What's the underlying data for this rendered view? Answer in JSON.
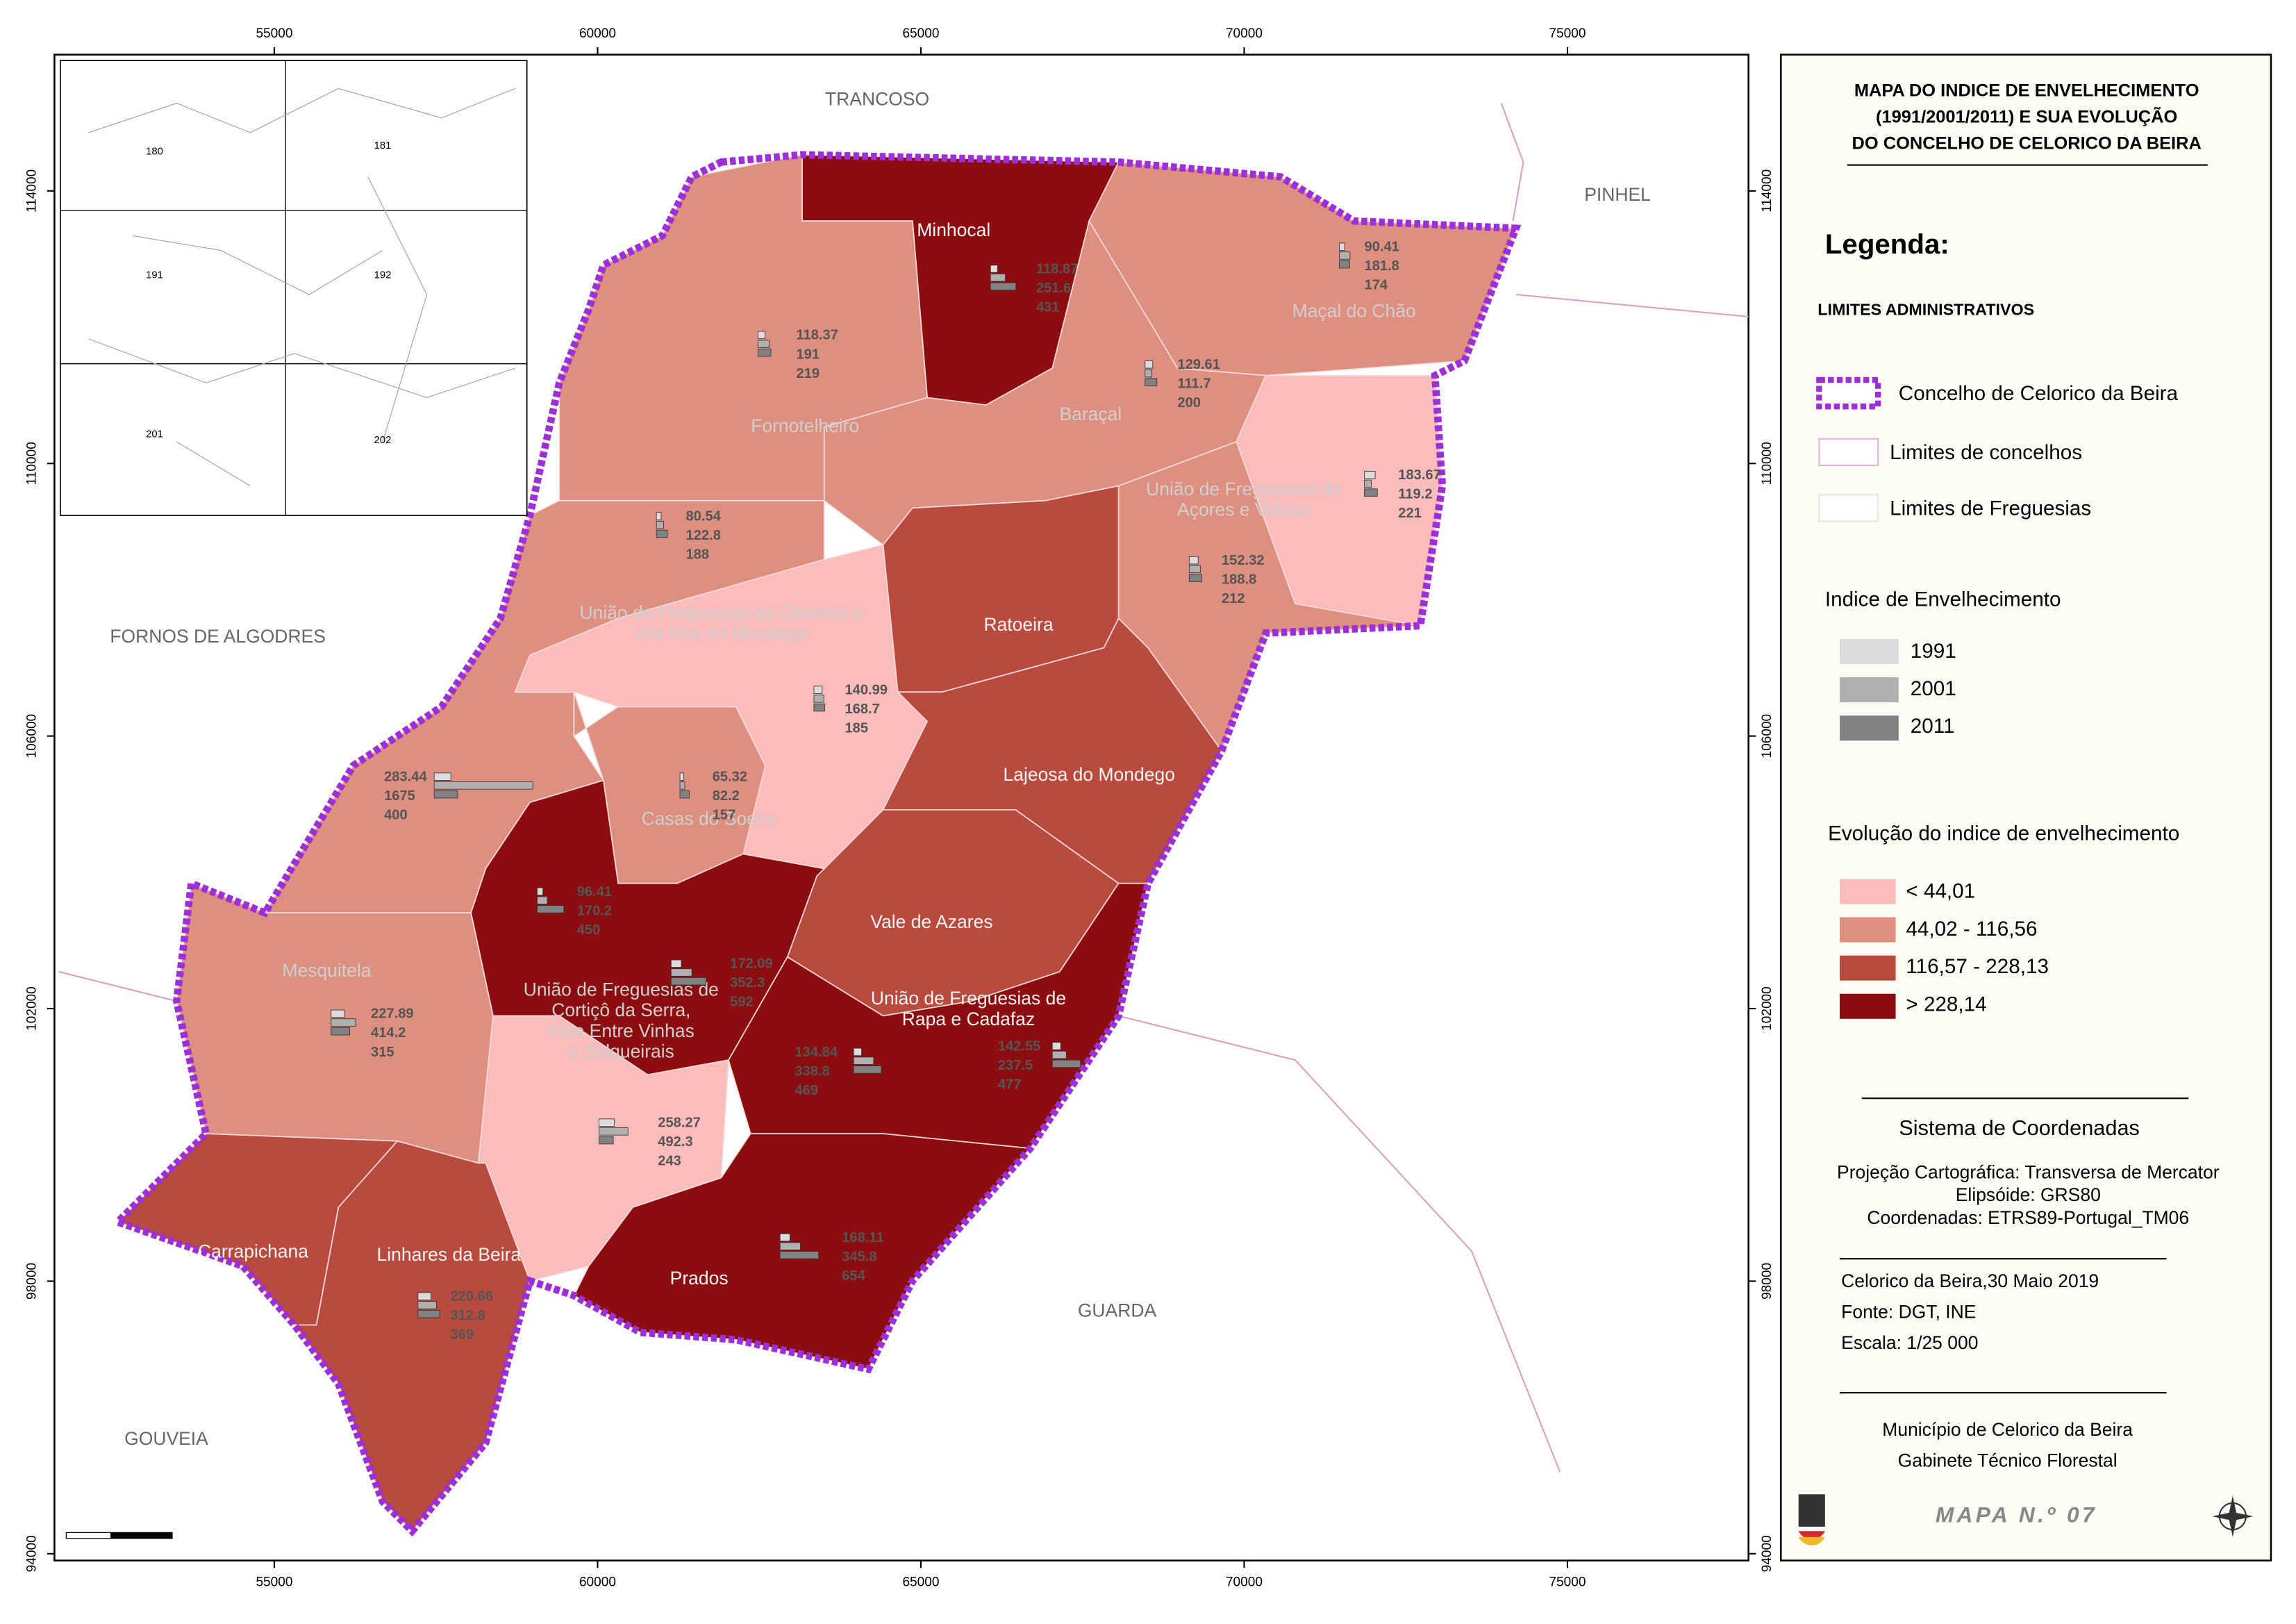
{
  "header": {
    "title": [
      "MAPA DO INDICE DE ENVELHECIMENTO",
      "(1991/2001/2011) E SUA EVOLUÇÃO",
      "DO CONCELHO DE CELORICO DA BEIRA"
    ]
  },
  "axes": {
    "xticks": [
      55000,
      60000,
      65000,
      70000,
      75000
    ],
    "xlim": [
      51600,
      77800
    ],
    "yticks": [
      94000,
      98000,
      102000,
      106000,
      110000,
      114000
    ],
    "ylim": [
      93900,
      116000
    ]
  },
  "neighbors": [
    "TRANCOSO",
    "PINHEL",
    "FORNOS DE ALGODRES",
    "GOUVEIA",
    "GUARDA"
  ],
  "inset": {
    "sheets": [
      "180",
      "181",
      "191",
      "192",
      "201",
      "202"
    ]
  },
  "regions": [
    {
      "name": [
        "Minhocal"
      ],
      "class": 3
    },
    {
      "name": [
        "Fornotelheiro"
      ],
      "class": 1
    },
    {
      "name": [
        "Maçal do Chão"
      ],
      "class": 1
    },
    {
      "name": [
        "Baraçal"
      ],
      "class": 1
    },
    {
      "class": 0
    },
    {
      "name": [
        "União de Freguesias de",
        "Açores e Velosa"
      ],
      "class": 1
    },
    {
      "name": [
        "Ratoeira"
      ],
      "class": 2
    },
    {
      "name": [
        "União de Freguesias do Celorico e",
        "Vila Boa do Mondego"
      ],
      "class": 1
    },
    {
      "class": 0
    },
    {
      "name": [
        "Casas do Soeiro"
      ],
      "class": 1
    },
    {
      "name": [
        "Lajeosa do Mondego"
      ],
      "class": 2
    },
    {
      "name": [
        "Vale de Azares"
      ],
      "class": 2
    },
    {
      "class": 3
    },
    {
      "name": [
        "União de Freguesias de",
        "Cortiçô da Serra,",
        "Vide Entre Vinhas",
        "e Salgueirais"
      ],
      "class": 0
    },
    {
      "name": [
        "União de Freguesias de",
        "Rapa e Cadafaz"
      ],
      "class": 3
    },
    {
      "name": [
        "Prados"
      ],
      "class": 3
    },
    {
      "name": [
        "Carrapichana"
      ],
      "class": 2
    },
    {
      "name": [
        "Linhares da Beira"
      ],
      "class": 2
    },
    {
      "name": [
        "Mesquitela"
      ],
      "class": 1
    }
  ],
  "bar_groups": [
    [
      118.87,
      251.6,
      431
    ],
    [
      118.37,
      191,
      219
    ],
    [
      90.41,
      181.8,
      174
    ],
    [
      129.61,
      111.7,
      200
    ],
    [
      183.67,
      119.2,
      221
    ],
    [
      152.32,
      188.8,
      212
    ],
    [
      80.54,
      122.8,
      188
    ],
    [
      140.99,
      168.7,
      185
    ],
    [
      283.44,
      1675,
      400
    ],
    [
      65.32,
      82.2,
      157
    ],
    [
      96.41,
      170.2,
      450
    ],
    [
      172.09,
      352.3,
      592
    ],
    [
      227.89,
      414.2,
      315
    ],
    [
      258.27,
      492.3,
      243
    ],
    [
      134.84,
      338.8,
      469
    ],
    [
      142.55,
      237.5,
      477
    ],
    [
      168.11,
      345.8,
      654
    ],
    [
      220.66,
      312.8,
      369
    ]
  ],
  "legend": {
    "heading": "Legenda:",
    "limits_title": "LIMITES ADMINISTRATIVOS",
    "limits": [
      "Concelho de Celorico da Beira",
      "Limites de concelhos",
      "Limites de Freguesias"
    ],
    "index_title": "Indice de Envelhecimento",
    "years": [
      {
        "label": "1991",
        "color": "#dcdcdc"
      },
      {
        "label": "2001",
        "color": "#b0b0b0"
      },
      {
        "label": "2011",
        "color": "#828282"
      }
    ],
    "evolution_title": "Evolução do indice de envelhecimento",
    "classes": [
      {
        "label": "< 44,01",
        "color": "#fbbcbb"
      },
      {
        "label": "44,02 - 116,56",
        "color": "#df8f7f"
      },
      {
        "label": "116,57 - 228,13",
        "color": "#b84a3e"
      },
      {
        "label": "> 228,14",
        "color": "#8b0d0f"
      }
    ]
  },
  "coordinates": {
    "title": "Sistema de Coordenadas",
    "lines": [
      "Projeção Cartográfica: Transversa de Mercator",
      "Elipsóide: GRS80",
      "Coordenadas: ETRS89-Portugal_TM06"
    ]
  },
  "meta": [
    "Celorico da Beira,30 Maio 2019",
    "Fonte: DGT, INE",
    "Escala: 1/25 000"
  ],
  "credits": [
    "Município de Celorico da Beira",
    "Gabinete Técnico Florestal"
  ],
  "map_number": "MAPA N.º 07"
}
